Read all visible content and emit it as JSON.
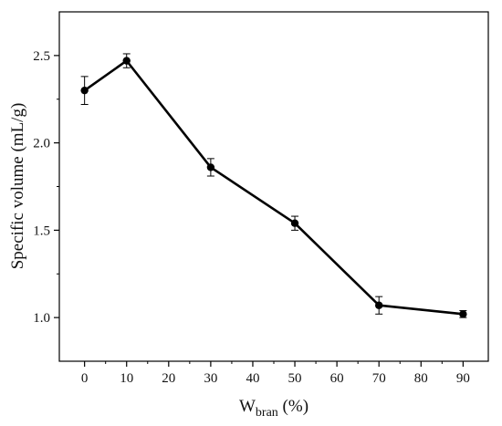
{
  "chart_data": {
    "type": "line",
    "x": [
      0,
      10,
      30,
      50,
      70,
      90
    ],
    "series": [
      {
        "values": [
          2.3,
          2.47,
          1.86,
          1.54,
          1.07,
          1.02
        ],
        "errors": [
          0.08,
          0.04,
          0.05,
          0.04,
          0.05,
          0.02
        ]
      }
    ],
    "xlabel_main": "W",
    "xlabel_sub": "bran",
    "xlabel_unit": " (%)",
    "ylabel": "Specific volume (mL/g)",
    "xlim": [
      -6,
      96
    ],
    "ylim": [
      0.75,
      2.75
    ],
    "xticks": [
      "0",
      "10",
      "20",
      "30",
      "40",
      "50",
      "60",
      "70",
      "80",
      "90"
    ],
    "yticks": [
      "1.0",
      "1.5",
      "2.0",
      "2.5"
    ],
    "grid": false,
    "line_color": "#000000",
    "marker": "filled-circle"
  }
}
